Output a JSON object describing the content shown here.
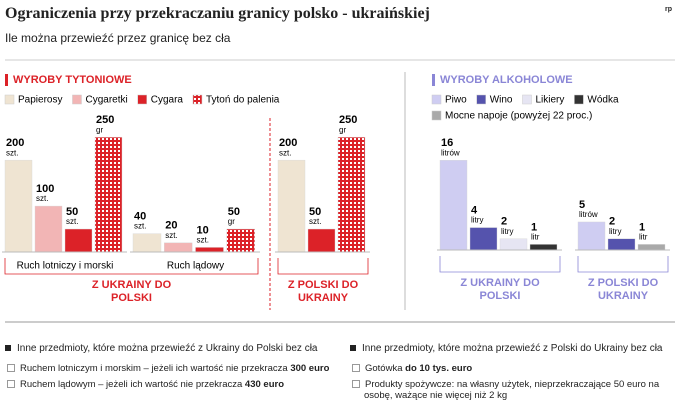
{
  "title": "Ograniczenia przy przekraczaniu granicy polsko - ukraińskiej",
  "logo": "rp",
  "subtitle": "Ile można przewieźć przez granicę bez cła",
  "chart_data": [
    {
      "type": "bar",
      "title": "WYROBY TYTONIOWE",
      "categories": [
        "Ruch lotniczy i morski",
        "Ruch lądowy",
        null
      ],
      "category_groups": [
        "Z UKRAINY DO POLSKI",
        "Z UKRAINY DO POLSKI",
        "Z POLSKI DO UKRAINY"
      ],
      "ylim": [
        0,
        270
      ],
      "series": [
        {
          "name": "Papierosy",
          "color": "#efe4d2",
          "values": [
            200,
            40,
            200
          ],
          "unit": "szt."
        },
        {
          "name": "Cygaretki",
          "color": "#f2b5b5",
          "values": [
            100,
            20,
            null
          ],
          "unit": "szt."
        },
        {
          "name": "Cygara",
          "color": "#dc2228",
          "values": [
            50,
            10,
            50
          ],
          "unit": "szt."
        },
        {
          "name": "Tytoń do palenia",
          "color": "#dc2228",
          "hatched": true,
          "values": [
            250,
            50,
            250
          ],
          "unit": "gr"
        }
      ]
    },
    {
      "type": "bar",
      "title": "WYROBY ALKOHOLOWE",
      "categories": [
        null,
        null
      ],
      "category_groups": [
        "Z UKRAINY DO POLSKI",
        "Z POLSKI DO UKRAINY"
      ],
      "ylim": [
        0,
        18
      ],
      "series": [
        {
          "name": "Piwo",
          "color": "#cfcdf2",
          "values": [
            16,
            5
          ],
          "units": [
            "litrów",
            "litrów"
          ]
        },
        {
          "name": "Wino",
          "color": "#5553ad",
          "values": [
            4,
            2
          ],
          "units": [
            "litry",
            "litry"
          ]
        },
        {
          "name": "Likiery",
          "color": "#e6e5f3",
          "values": [
            2,
            null
          ],
          "units": [
            "litry",
            null
          ]
        },
        {
          "name": "Wódka",
          "color": "#333333",
          "values": [
            1,
            null
          ],
          "units": [
            "litr",
            null
          ]
        },
        {
          "name": "Mocne napoje (powyżej 22 proc.)",
          "color": "#a9a9a9",
          "values": [
            null,
            1
          ],
          "units": [
            null,
            "litr"
          ]
        }
      ]
    }
  ],
  "notes": [
    {
      "heading": "Inne przedmioty, które można przewieźć z Ukrainy do Polski bez cła",
      "items": [
        [
          "Ruchem lotniczym i morskim – jeżeli ich wartość nie przekracza ",
          "300 euro"
        ],
        [
          "Ruchem lądowym – jeżeli ich wartość nie przekracza ",
          "430 euro"
        ]
      ]
    },
    {
      "heading": "Inne przedmioty, które można przewieźć z Polski do Ukrainy bez cła",
      "items": [
        [
          "Gotówka ",
          "do 10 tys. euro"
        ],
        [
          "Produkty spożywcze: na własny użytek, nieprzekraczające 50 euro na osobę, ważące nie więcej niż 2 kg",
          null
        ]
      ]
    }
  ]
}
